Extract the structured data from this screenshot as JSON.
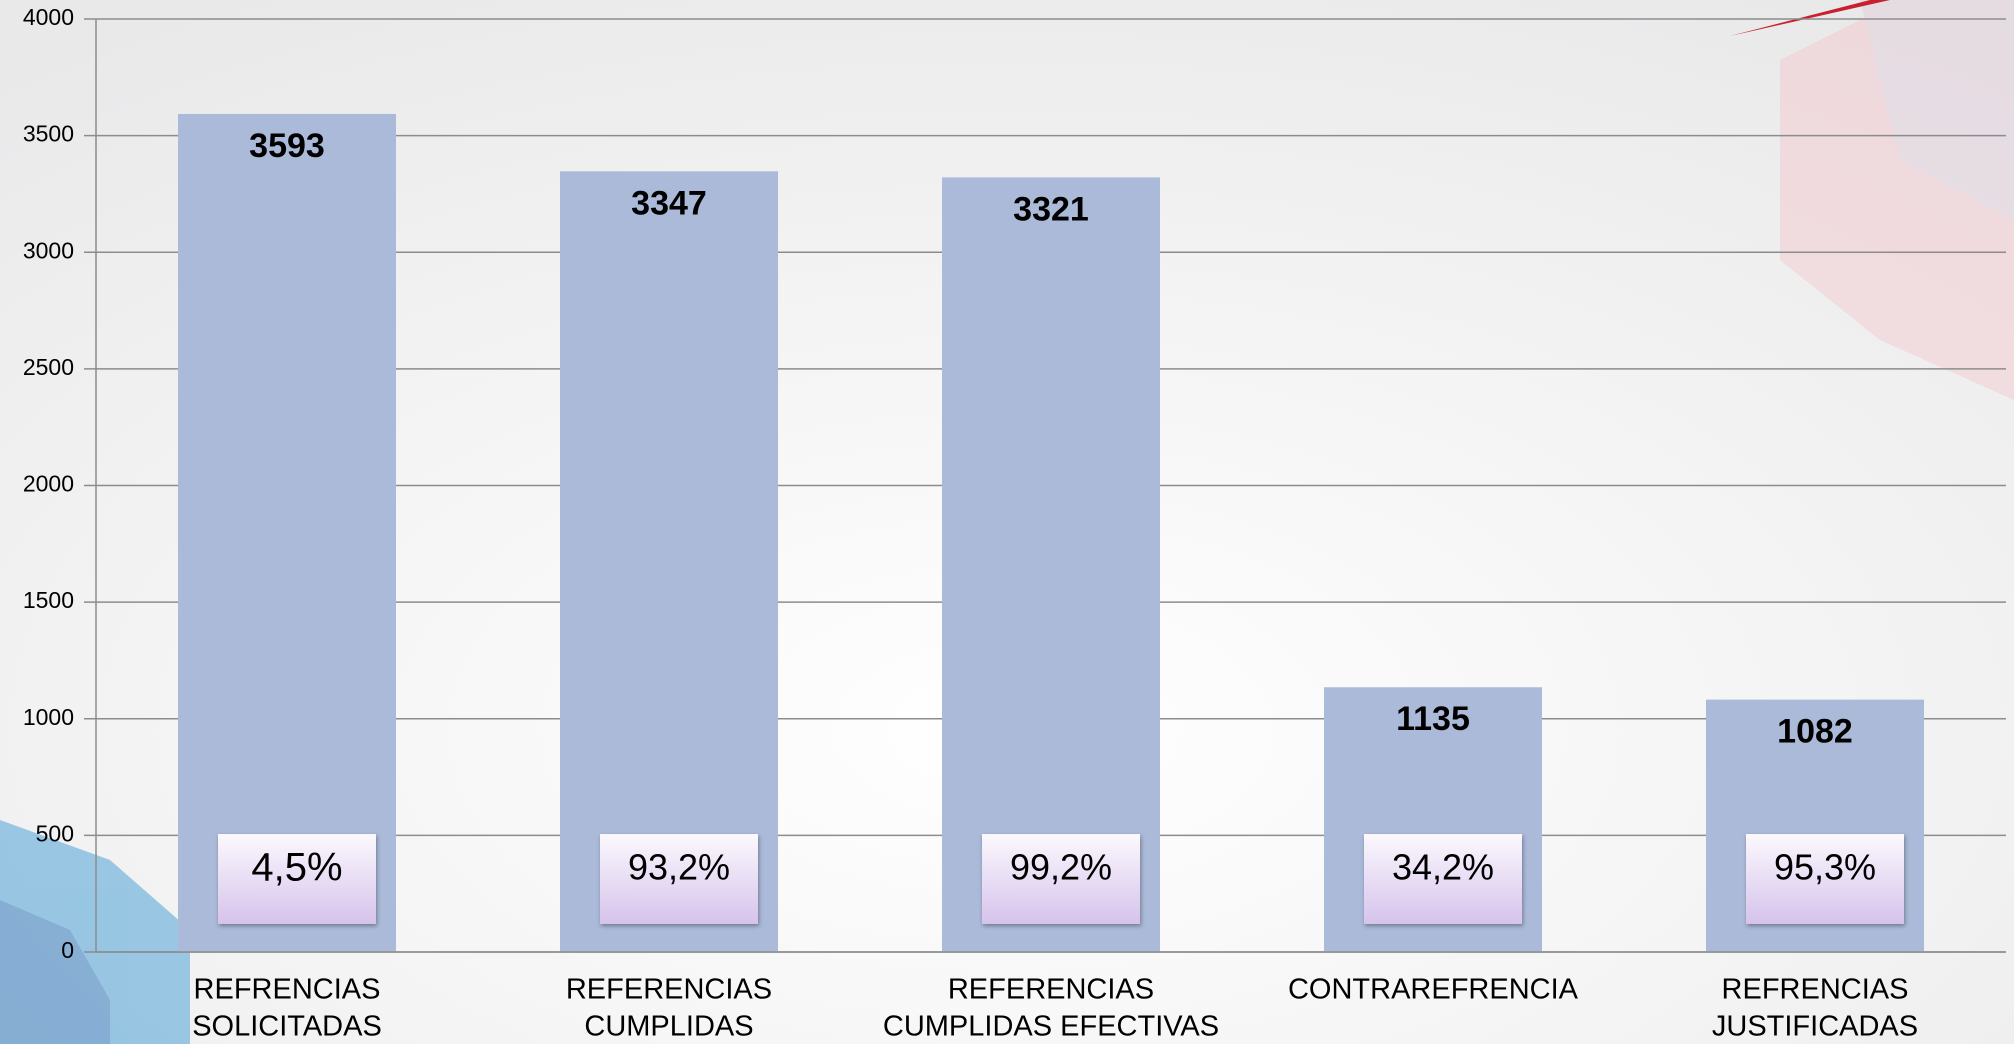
{
  "chart_data": {
    "type": "bar",
    "categories": [
      [
        "REFRENCIAS",
        "SOLICITADAS"
      ],
      [
        "REFERENCIAS",
        "CUMPLIDAS"
      ],
      [
        "REFERENCIAS",
        "CUMPLIDAS EFECTIVAS"
      ],
      [
        "CONTRAREFRENCIA"
      ],
      [
        "REFRENCIAS",
        "JUSTIFICADAS"
      ]
    ],
    "values": [
      3593,
      3347,
      3321,
      1135,
      1082
    ],
    "annotations": [
      "4,5%",
      "93,2%",
      "99,2%",
      "34,2%",
      "95,3%"
    ],
    "color": "#abbad9",
    "ylim": [
      0,
      4000
    ],
    "yticks": [
      0,
      500,
      1000,
      1500,
      2000,
      2500,
      3000,
      3500,
      4000
    ],
    "grid": true
  }
}
